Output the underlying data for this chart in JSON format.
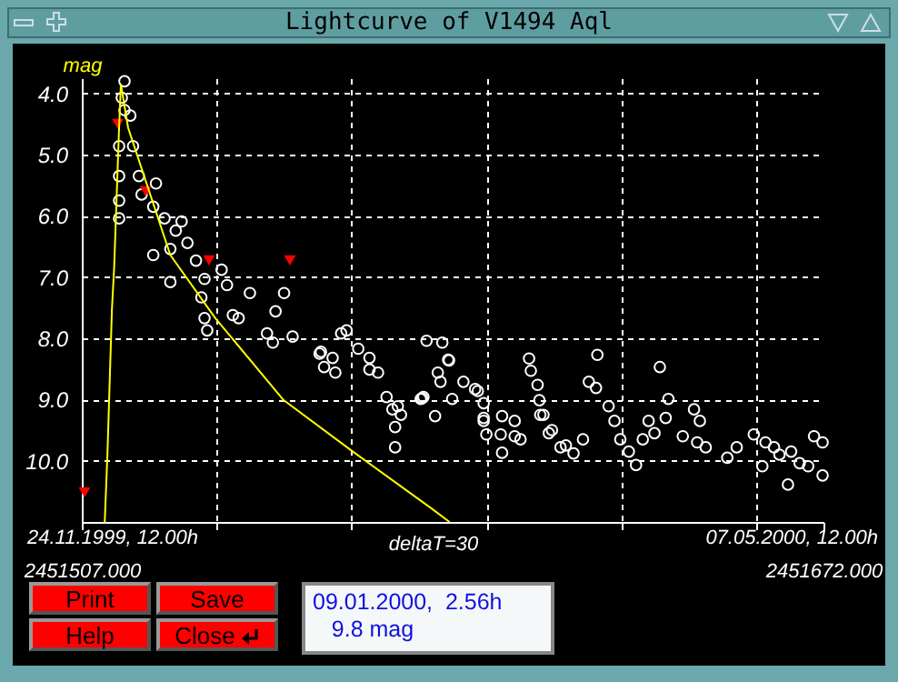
{
  "chart_data": {
    "type": "scatter",
    "title": "Lightcurve of V1494 Aql",
    "xlabel": "deltaT=30",
    "ylabel": "mag",
    "annotations": [
      "Print",
      "Save",
      "Help",
      "Close",
      "09.01.2000,  2.56h",
      "9.8 mag",
      "24.11.1999, 12.00h",
      "07.05.2000, 12.00h"
    ],
    "xlim": [
      2451507,
      2451672
    ],
    "ylim": [
      11.0,
      3.75
    ],
    "xticks": [
      {
        "value": 2451507,
        "label": "2451507.000"
      },
      {
        "value": 2451537,
        "label": null
      },
      {
        "value": 2451567,
        "label": null
      },
      {
        "value": 2451597,
        "label": null
      },
      {
        "value": 2451627,
        "label": null
      },
      {
        "value": 2451657,
        "label": null
      },
      {
        "value": 2451672,
        "label": "2451672.000"
      }
    ],
    "yticks": [
      {
        "value": 4,
        "label": "4.0"
      },
      {
        "value": 5,
        "label": "5.0"
      },
      {
        "value": 6,
        "label": "6.0"
      },
      {
        "value": 7,
        "label": "7.0"
      },
      {
        "value": 8,
        "label": "8.0"
      },
      {
        "value": 9,
        "label": "9.0"
      },
      {
        "value": 10,
        "label": "10.0"
      }
    ],
    "grid": true,
    "series": [
      {
        "color": "#ffffff",
        "marker": "circle",
        "x": [
          2451516.5,
          2451515.9,
          2451516.5,
          2451515.3,
          2451515.3,
          2451515.3,
          2451515.3,
          2451517.8,
          2451518.4,
          2451519.7,
          2451520.3,
          2451523.5,
          2451522.9,
          2451525.4,
          2451527.9,
          2451529.2,
          2451526.7,
          2451522.9,
          2451530.5,
          2451526.7,
          2451532.4,
          2451534.3,
          2451533.6,
          2451538.1,
          2451539.3,
          2451544.4,
          2451552.0,
          2451550.1,
          2451534.3,
          2451540.6,
          2451534.9,
          2451541.9,
          2451548.2,
          2451549.5,
          2451553.9,
          2451564.7,
          2451565.9,
          2451568.5,
          2451560.2,
          2451562.8,
          2451560.9,
          2451563.4,
          2451571.0,
          2451572.9,
          2451574.8,
          2451577.3,
          2451576.7,
          2451576.7,
          2451583.0,
          2451583.7,
          2451559.9,
          2451571.0,
          2451576.1,
          2451578.0,
          2451582.7,
          2451587.2,
          2451588.5,
          2451586.8,
          2451591.9,
          2451589.4,
          2451585.6,
          2451594.5,
          2451596.4,
          2451596.4,
          2451597.0,
          2451600.2,
          2451600.5,
          2451600.5,
          2451603.3,
          2451606.5,
          2451606.9,
          2451608.4,
          2451608.8,
          2451609.7,
          2451611.6,
          2451613.5,
          2451588.7,
          2451586.2,
          2451595.1,
          2451582.4,
          2451596.4,
          2451603.3,
          2451604.6,
          2451609.0,
          2451610.9,
          2451614.7,
          2451618.5,
          2451616.4,
          2451621.7,
          2451619.8,
          2451621.4,
          2451624.2,
          2451625.5,
          2451626.8,
          2451628.7,
          2451630.3,
          2451631.8,
          2451633.1,
          2451635.6,
          2451637.5,
          2451636.9,
          2451634.4,
          2451640.7,
          2451643.2,
          2451644.5,
          2451643.9,
          2451645.8,
          2451650.6,
          2451652.7,
          2451656.5,
          2451659.1,
          2451658.4,
          2451662.2,
          2451664.8,
          2451664.1,
          2451666.7,
          2451669.9,
          2451671.8,
          2451671.8,
          2451668.6,
          2451661.0
        ],
        "values": [
          3.8,
          4.07,
          4.27,
          4.86,
          5.35,
          5.75,
          6.04,
          4.36,
          4.86,
          5.35,
          5.65,
          5.47,
          5.85,
          6.04,
          6.24,
          6.09,
          6.54,
          6.64,
          6.44,
          7.08,
          6.73,
          7.03,
          7.33,
          6.88,
          7.13,
          7.26,
          7.26,
          7.56,
          7.67,
          7.62,
          7.87,
          7.67,
          7.92,
          8.07,
          7.97,
          7.92,
          7.87,
          8.17,
          8.22,
          8.32,
          8.47,
          8.56,
          8.32,
          8.56,
          8.96,
          9.11,
          9.45,
          9.78,
          8.96,
          8.04,
          8.25,
          8.51,
          9.16,
          9.25,
          8.98,
          8.07,
          8.35,
          8.71,
          8.71,
          8.99,
          9.27,
          8.83,
          9.06,
          9.3,
          9.57,
          9.57,
          9.27,
          9.87,
          9.6,
          8.33,
          8.53,
          8.76,
          9.01,
          9.25,
          9.5,
          9.78,
          8.36,
          8.56,
          8.86,
          8.99,
          9.35,
          9.35,
          9.65,
          9.25,
          9.55,
          9.75,
          9.65,
          9.88,
          8.27,
          8.71,
          8.81,
          9.11,
          9.35,
          9.65,
          9.85,
          10.07,
          9.65,
          9.35,
          8.47,
          8.99,
          9.3,
          9.55,
          9.6,
          9.16,
          9.35,
          9.7,
          9.78,
          9.95,
          9.78,
          9.57,
          9.7,
          10.09,
          9.9,
          9.85,
          10.39,
          10.04,
          9.6,
          9.7,
          10.24,
          10.09,
          9.78
        ]
      },
      {
        "color": "#ff0000",
        "marker": "triangle",
        "x": [
          2451515.0,
          2451521.2,
          2451535.3,
          2451553.3,
          2451507.6
        ],
        "values": [
          4.49,
          5.59,
          6.72,
          6.72,
          10.51
        ]
      },
      {
        "type": "line",
        "color": "#ffff00",
        "marker": "none",
        "x": [
          2451515.7,
          2451517.3,
          2451526.7,
          2451536.7,
          2451551.9,
          2451567.1,
          2451585.0,
          2451588.8
        ],
        "values": [
          3.85,
          4.56,
          6.64,
          7.67,
          9.01,
          9.84,
          10.79,
          11.0
        ]
      },
      {
        "type": "line",
        "color": "#ffff00",
        "marker": "none",
        "x": [
          2451512.1,
          2451512.7,
          2451513.7,
          2451514.2,
          2451515.25,
          2451515.7
        ],
        "values": [
          11.0,
          9.9,
          7.53,
          6.84,
          4.65,
          3.85
        ]
      }
    ]
  }
}
